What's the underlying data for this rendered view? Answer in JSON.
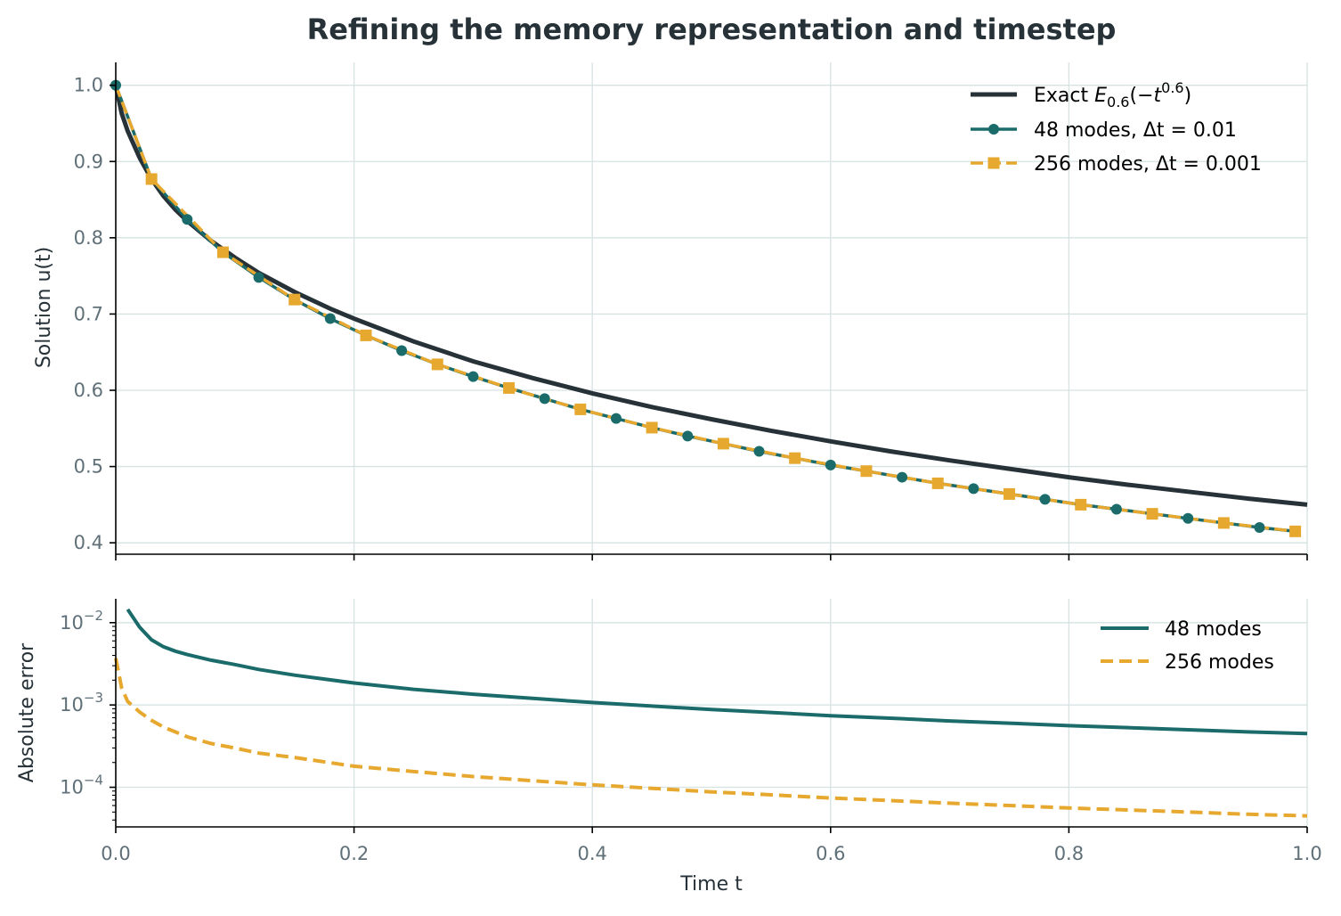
{
  "chart_data": [
    {
      "type": "line",
      "title": "Refining the memory representation and timestep",
      "xlabel": "",
      "ylabel": "Solution u(t)",
      "xlim": [
        0.0,
        1.0
      ],
      "ylim": [
        0.385,
        1.03
      ],
      "yticks": [
        "1.0",
        "0.9",
        "0.8",
        "0.7",
        "0.6",
        "0.5",
        "0.4"
      ],
      "grid": true,
      "legend_position": "top-right",
      "series": [
        {
          "name": "Exact E0.6(−t0.6)",
          "color": "#263238",
          "style": "solid",
          "x": [
            0.0,
            0.005,
            0.01,
            0.02,
            0.03,
            0.04,
            0.05,
            0.06,
            0.08,
            0.1,
            0.12,
            0.15,
            0.18,
            0.2,
            0.25,
            0.3,
            0.35,
            0.4,
            0.45,
            0.5,
            0.55,
            0.6,
            0.65,
            0.7,
            0.75,
            0.8,
            0.85,
            0.9,
            0.95,
            1.0
          ],
          "y": [
            1.0,
            0.963,
            0.94,
            0.905,
            0.877,
            0.855,
            0.837,
            0.822,
            0.796,
            0.774,
            0.754,
            0.729,
            0.707,
            0.694,
            0.664,
            0.638,
            0.616,
            0.596,
            0.578,
            0.562,
            0.547,
            0.533,
            0.52,
            0.508,
            0.497,
            0.486,
            0.476,
            0.467,
            0.458,
            0.45
          ]
        },
        {
          "name": "48 modes, Δt = 0.01",
          "color": "#1b6b6b",
          "style": "solid-circle-markers",
          "x": [
            0.0,
            0.03,
            0.06,
            0.09,
            0.12,
            0.15,
            0.18,
            0.21,
            0.24,
            0.27,
            0.3,
            0.33,
            0.36,
            0.39,
            0.42,
            0.45,
            0.48,
            0.51,
            0.54,
            0.57,
            0.6,
            0.63,
            0.66,
            0.69,
            0.72,
            0.75,
            0.78,
            0.81,
            0.84,
            0.87,
            0.9,
            0.93,
            0.96,
            0.99
          ],
          "y": [
            1.0,
            0.877,
            0.824,
            0.781,
            0.748,
            0.719,
            0.694,
            0.672,
            0.652,
            0.634,
            0.618,
            0.603,
            0.589,
            0.575,
            0.563,
            0.551,
            0.54,
            0.53,
            0.52,
            0.511,
            0.502,
            0.494,
            0.486,
            0.478,
            0.471,
            0.464,
            0.457,
            0.45,
            0.444,
            0.438,
            0.432,
            0.426,
            0.42,
            0.415
          ]
        },
        {
          "name": "256 modes, Δt = 0.001",
          "color": "#e6a82e",
          "style": "dashed-square-markers",
          "x": [
            0.03,
            0.09,
            0.15,
            0.21,
            0.27,
            0.33,
            0.39,
            0.45,
            0.51,
            0.57,
            0.63,
            0.69,
            0.75,
            0.81,
            0.87,
            0.93,
            0.99
          ],
          "y": [
            0.877,
            0.781,
            0.719,
            0.672,
            0.634,
            0.603,
            0.575,
            0.551,
            0.53,
            0.511,
            0.494,
            0.478,
            0.464,
            0.45,
            0.438,
            0.426,
            0.415
          ]
        }
      ]
    },
    {
      "type": "line",
      "xlabel": "Time t",
      "ylabel": "Absolute error",
      "yscale": "log",
      "xlim": [
        0.0,
        1.0
      ],
      "ylim": [
        3.3e-05,
        0.0195
      ],
      "xticks": [
        "0.0",
        "0.2",
        "0.4",
        "0.6",
        "0.8",
        "1.0"
      ],
      "yticks": [
        "10−2",
        "10−3",
        "10−4"
      ],
      "grid": true,
      "legend_position": "top-right",
      "series": [
        {
          "name": "48 modes",
          "color": "#1b6b6b",
          "style": "solid",
          "x": [
            0.01,
            0.02,
            0.03,
            0.04,
            0.05,
            0.06,
            0.08,
            0.1,
            0.12,
            0.15,
            0.2,
            0.25,
            0.3,
            0.35,
            0.4,
            0.45,
            0.5,
            0.55,
            0.6,
            0.65,
            0.7,
            0.75,
            0.8,
            0.85,
            0.9,
            0.95,
            1.0
          ],
          "y": [
            0.0145,
            0.0088,
            0.0062,
            0.0051,
            0.0045,
            0.0041,
            0.0035,
            0.0031,
            0.0027,
            0.0023,
            0.00185,
            0.00155,
            0.00135,
            0.0012,
            0.00107,
            0.00097,
            0.00088,
            0.00081,
            0.00074,
            0.00069,
            0.00064,
            0.0006,
            0.00056,
            0.00053,
            0.0005,
            0.00047,
            0.00045
          ]
        },
        {
          "name": "256 modes",
          "color": "#e6a82e",
          "style": "dashed",
          "x": [
            0.0,
            0.005,
            0.01,
            0.02,
            0.03,
            0.04,
            0.05,
            0.06,
            0.08,
            0.1,
            0.12,
            0.15,
            0.2,
            0.25,
            0.3,
            0.35,
            0.4,
            0.45,
            0.5,
            0.55,
            0.6,
            0.65,
            0.7,
            0.75,
            0.8,
            0.85,
            0.9,
            0.95,
            1.0
          ],
          "y": [
            0.0037,
            0.0016,
            0.0011,
            0.00082,
            0.00065,
            0.00054,
            0.00047,
            0.00041,
            0.00034,
            0.0003,
            0.00026,
            0.00023,
            0.00018,
            0.000155,
            0.000135,
            0.00012,
            0.000107,
            9.7e-05,
            8.8e-05,
            8.1e-05,
            7.4e-05,
            6.9e-05,
            6.4e-05,
            6e-05,
            5.6e-05,
            5.3e-05,
            5e-05,
            4.7e-05,
            4.5e-05
          ]
        }
      ]
    }
  ]
}
